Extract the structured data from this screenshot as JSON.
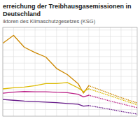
{
  "chart_data": {
    "type": "line",
    "title": "erreichung der Treibhausgasemissionen in Deutschland",
    "subtitle": "iktoren des Klimaschutzgesetzes (KSG)",
    "series": [
      {
        "color": "#cc8800",
        "line_style": "solid",
        "x": [
          2005,
          2007,
          2009,
          2011,
          2013,
          2015,
          2017,
          2019,
          2020,
          2021
        ],
        "values": [
          300,
          330,
          285,
          265,
          248,
          205,
          182,
          148,
          112,
          140
        ]
      },
      {
        "color": "#ddbb00",
        "line_style": "solid",
        "x": [
          2005,
          2007,
          2009,
          2011,
          2013,
          2015,
          2017,
          2019,
          2020,
          2021
        ],
        "values": [
          128,
          132,
          135,
          140,
          148,
          148,
          152,
          132,
          118,
          128
        ]
      },
      {
        "color": "#bb2288",
        "line_style": "solid",
        "x": [
          2005,
          2007,
          2009,
          2011,
          2013,
          2015,
          2017,
          2019,
          2020,
          2021
        ],
        "values": [
          112,
          116,
          118,
          117,
          117,
          115,
          114,
          108,
          98,
          104
        ]
      },
      {
        "color": "#661888",
        "line_style": "solid",
        "x": [
          2005,
          2007,
          2009,
          2011,
          2013,
          2015,
          2017,
          2019,
          2020,
          2021
        ],
        "values": [
          88,
          85,
          82,
          80,
          78,
          76,
          73,
          70,
          63,
          65
        ]
      },
      {
        "color": "#cc8800",
        "line_style": "dotted",
        "x": [
          2021,
          2023,
          2025,
          2027,
          2030
        ],
        "values": [
          140,
          125,
          110,
          95,
          75
        ]
      },
      {
        "color": "#ddbb00",
        "line_style": "dotted",
        "x": [
          2021,
          2023,
          2025,
          2027,
          2030
        ],
        "values": [
          128,
          115,
          102,
          88,
          68
        ]
      },
      {
        "color": "#bb2288",
        "line_style": "dotted",
        "x": [
          2021,
          2023,
          2025,
          2027,
          2030
        ],
        "values": [
          104,
          93,
          82,
          72,
          57
        ]
      },
      {
        "color": "#661888",
        "line_style": "dotted",
        "x": [
          2021,
          2023,
          2025,
          2027,
          2030
        ],
        "values": [
          65,
          58,
          51,
          43,
          33
        ]
      }
    ],
    "xlim": [
      2005,
      2030
    ],
    "xticks": [
      2005,
      2007,
      2009,
      2011,
      2013,
      2015,
      2017,
      2019,
      2021,
      2023,
      2025,
      2027,
      2029
    ],
    "ylim": [
      25,
      360
    ],
    "yticks": [
      25,
      50,
      75,
      100,
      125,
      150,
      175,
      200,
      225,
      250,
      275,
      300,
      325,
      350
    ],
    "grid": true,
    "tick_labels": false
  }
}
